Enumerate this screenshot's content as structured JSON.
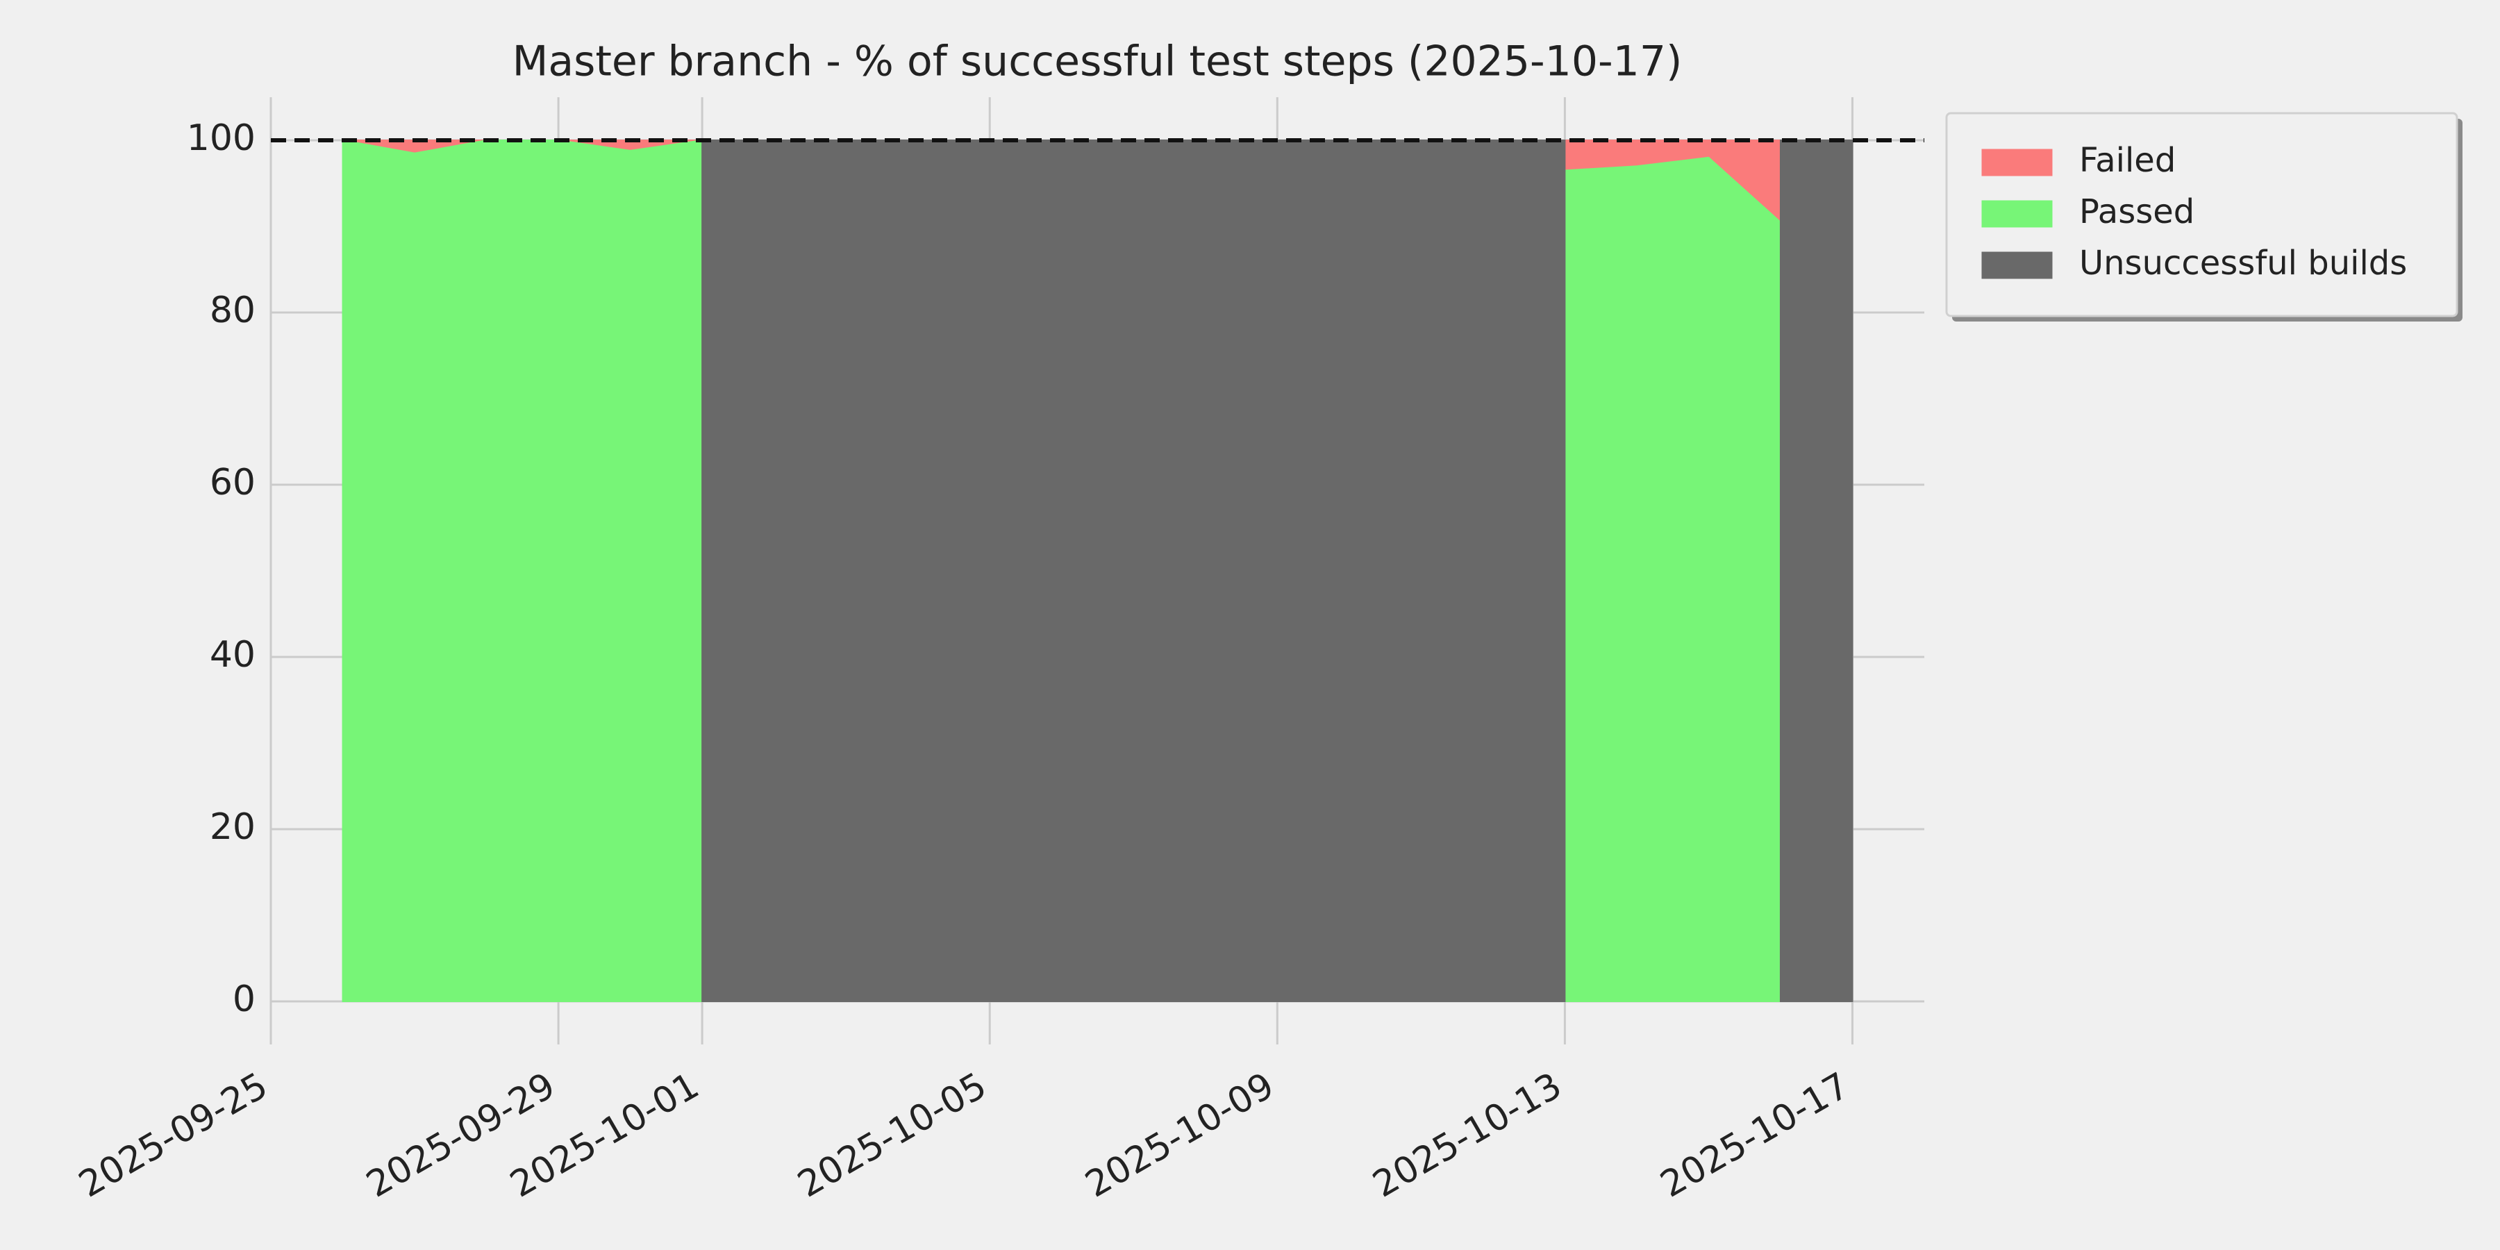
{
  "chart_data": {
    "type": "stacked_area",
    "title": "Master branch - % of successful test steps (2025-10-17)",
    "x": [
      "2025-09-26",
      "2025-09-27",
      "2025-09-28",
      "2025-09-29",
      "2025-09-30",
      "2025-10-01",
      "2025-10-01",
      "2025-10-13",
      "2025-10-13",
      "2025-10-14",
      "2025-10-15",
      "2025-10-16",
      "2025-10-16",
      "2025-10-17"
    ],
    "series": [
      {
        "name": "Failed",
        "color": "#fa7b7b",
        "values": [
          0,
          1.5,
          0,
          0,
          1.2,
          0,
          null,
          null,
          3.5,
          3,
          2,
          9.5,
          null,
          null
        ]
      },
      {
        "name": "Passed",
        "color": "#77f577",
        "values": [
          100,
          98.5,
          100,
          100,
          98.8,
          100,
          null,
          null,
          96.5,
          97,
          98,
          90.5,
          null,
          null
        ]
      },
      {
        "name": "Unsuccessful builds",
        "color": "#696969",
        "values": [
          null,
          null,
          null,
          null,
          null,
          null,
          100,
          100,
          null,
          null,
          null,
          null,
          100,
          100
        ]
      }
    ],
    "xlim": [
      "2025-09-25",
      "2025-10-18"
    ],
    "xticks": [
      "2025-09-25",
      "2025-09-29",
      "2025-10-01",
      "2025-10-05",
      "2025-10-09",
      "2025-10-13",
      "2025-10-17"
    ],
    "ylim": [
      -5,
      105
    ],
    "yticks": [
      0,
      20,
      40,
      60,
      80,
      100
    ],
    "reference_line": 100,
    "grid": true,
    "legend": "outside-right"
  }
}
